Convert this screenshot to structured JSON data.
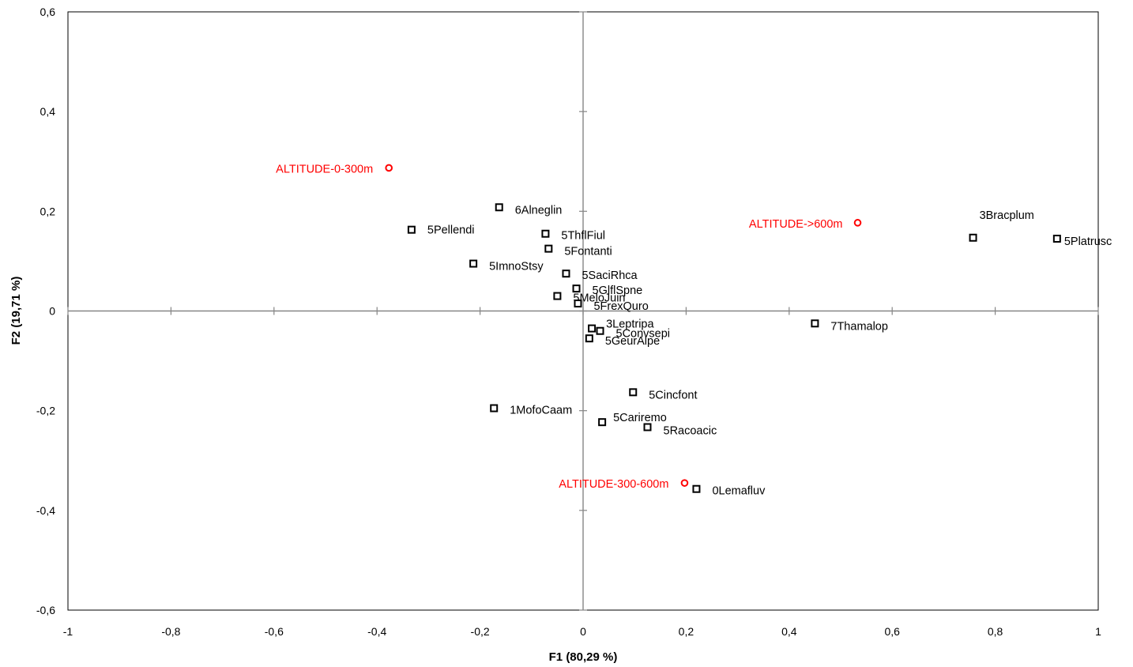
{
  "chart_data": {
    "type": "scatter",
    "title": "",
    "xlabel": "F1 (80,29 %)",
    "ylabel": "F2 (19,71 %)",
    "xlim": [
      -1,
      1
    ],
    "ylim": [
      -0.6,
      0.6
    ],
    "x_ticks": [
      -1,
      -0.8,
      -0.6,
      -0.4,
      -0.2,
      0,
      0.2,
      0.4,
      0.6,
      0.8,
      1
    ],
    "x_tick_labels": [
      "-1",
      "-0,8",
      "-0,6",
      "-0,4",
      "-0,2",
      "0",
      "0,2",
      "0,4",
      "0,6",
      "0,8",
      "1"
    ],
    "y_ticks": [
      -0.6,
      -0.4,
      -0.2,
      0,
      0.2,
      0.4,
      0.6
    ],
    "y_tick_labels": [
      "-0,6",
      "-0,4",
      "-0,2",
      "0",
      "0,2",
      "0,4",
      "0,6"
    ],
    "grid": false,
    "legend": "none",
    "series": [
      {
        "marker": "square-open",
        "color": "#000000",
        "points": [
          {
            "label": "6Alneglin",
            "x": -0.163,
            "y": 0.208
          },
          {
            "label": "5Pellendi",
            "x": -0.333,
            "y": 0.163
          },
          {
            "label": "5ThflFiul",
            "x": -0.073,
            "y": 0.155
          },
          {
            "label": "5Fontanti",
            "x": -0.067,
            "y": 0.125
          },
          {
            "label": "5ImnoStsy",
            "x": -0.213,
            "y": 0.095
          },
          {
            "label": "5SaciRhca",
            "x": -0.033,
            "y": 0.075
          },
          {
            "label": "5GlflSpne",
            "x": -0.013,
            "y": 0.045
          },
          {
            "label": "5MeloJuin",
            "x": -0.05,
            "y": 0.03
          },
          {
            "label": "5FrexQuro",
            "x": -0.01,
            "y": 0.015
          },
          {
            "label": "3Leptripa",
            "x": 0.017,
            "y": -0.035
          },
          {
            "label": "5Convsepi",
            "x": 0.033,
            "y": -0.04
          },
          {
            "label": "5GeurAlpe",
            "x": 0.012,
            "y": -0.055
          },
          {
            "label": "5Cincfont",
            "x": 0.097,
            "y": -0.163
          },
          {
            "label": "1MofoCaam",
            "x": -0.173,
            "y": -0.195
          },
          {
            "label": "5Cariremo",
            "x": 0.037,
            "y": -0.223
          },
          {
            "label": "5Racoacic",
            "x": 0.125,
            "y": -0.233
          },
          {
            "label": "0Lemafluv",
            "x": 0.22,
            "y": -0.357
          },
          {
            "label": "7Thamalop",
            "x": 0.45,
            "y": -0.025
          },
          {
            "label": "3Bracplum",
            "x": 0.757,
            "y": 0.147
          },
          {
            "label": "5Platrusc",
            "x": 0.92,
            "y": 0.145
          }
        ]
      },
      {
        "marker": "circle-open",
        "color": "#ff0000",
        "points": [
          {
            "label": "ALTITUDE-0-300m",
            "x": -0.377,
            "y": 0.287
          },
          {
            "label": "ALTITUDE->600m",
            "x": 0.533,
            "y": 0.177
          },
          {
            "label": "ALTITUDE-300-600m",
            "x": 0.197,
            "y": -0.345
          }
        ]
      }
    ]
  }
}
